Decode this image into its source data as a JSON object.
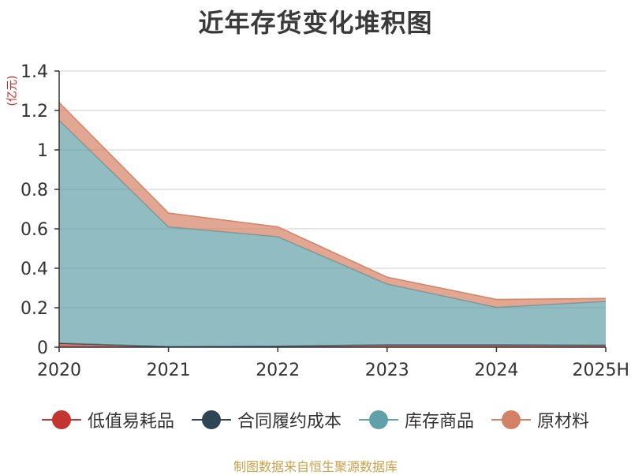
{
  "chart_data": {
    "type": "area",
    "title": "近年存货变化堆积图",
    "unit_label": "(亿元)",
    "categories": [
      "2020",
      "2021",
      "2022",
      "2023",
      "2024",
      "2025H"
    ],
    "ylim": [
      0,
      1.4
    ],
    "yticks": [
      "0",
      "0.2",
      "0.4",
      "0.6",
      "0.8",
      "1",
      "1.2",
      "1.4"
    ],
    "stacked": true,
    "grid": true,
    "legend_position": "bottom",
    "series": [
      {
        "name": "低值易耗品",
        "color": "#c23531",
        "values": [
          0.02,
          0.003,
          0.005,
          0.012,
          0.012,
          0.01
        ]
      },
      {
        "name": "合同履约成本",
        "color": "#2f4554",
        "values": [
          0.0,
          0.0,
          0.0,
          0.0,
          0.0,
          0.0
        ]
      },
      {
        "name": "库存商品",
        "color": "#61a0a8",
        "values": [
          1.13,
          0.607,
          0.555,
          0.308,
          0.19,
          0.222
        ]
      },
      {
        "name": "原材料",
        "color": "#d48265",
        "values": [
          0.09,
          0.07,
          0.05,
          0.035,
          0.04,
          0.015
        ]
      }
    ],
    "source": "制图数据来自恒生聚源数据库"
  }
}
